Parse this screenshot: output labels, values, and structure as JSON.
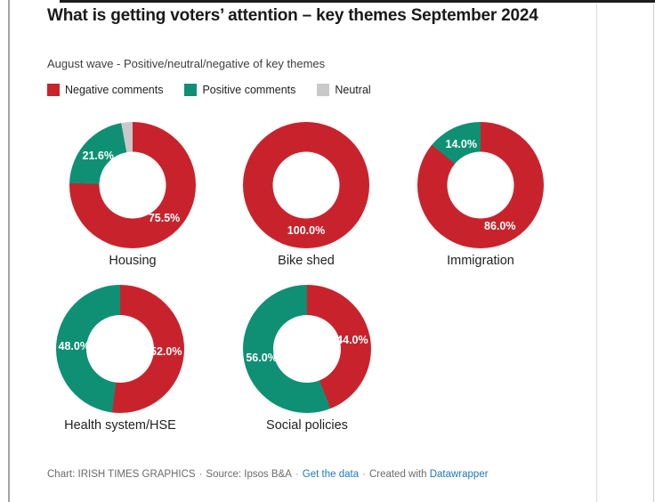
{
  "page": {
    "title": "What is getting voters’ attention – key themes September 2024",
    "subtitle": "August wave - Positive/neutral/negative of key themes"
  },
  "colors": {
    "negative": "#c8232c",
    "positive": "#0f9074",
    "neutral": "#c9c9c9",
    "link_blue": "#1f78c1",
    "title_text": "#1a1a1a",
    "body_text": "#222222",
    "footer_text": "#6b6b6b"
  },
  "legend": [
    {
      "label": "Negative comments",
      "color": "#c8232c"
    },
    {
      "label": "Positive comments",
      "color": "#0f9074"
    },
    {
      "label": "Neutral",
      "color": "#c9c9c9"
    }
  ],
  "chart_data": {
    "type": "pie",
    "subtype": "donut",
    "start_angle_deg": 0,
    "direction": "clockwise",
    "series_order": [
      "Negative comments",
      "Positive comments",
      "Neutral"
    ],
    "charts": [
      {
        "label": "Housing",
        "slices": [
          {
            "name": "Negative comments",
            "value": 75.5,
            "display": "75.5%"
          },
          {
            "name": "Positive comments",
            "value": 21.6,
            "display": "21.6%"
          },
          {
            "name": "Neutral",
            "value": 2.9,
            "display": ""
          }
        ]
      },
      {
        "label": "Bike shed",
        "slices": [
          {
            "name": "Negative comments",
            "value": 100.0,
            "display": "100.0%"
          }
        ]
      },
      {
        "label": "Immigration",
        "slices": [
          {
            "name": "Negative comments",
            "value": 86.0,
            "display": "86.0%"
          },
          {
            "name": "Positive comments",
            "value": 14.0,
            "display": "14.0%"
          }
        ]
      },
      {
        "label": "Health system/HSE",
        "slices": [
          {
            "name": "Negative comments",
            "value": 52.0,
            "display": "52.0%"
          },
          {
            "name": "Positive comments",
            "value": 48.0,
            "display": "48.0%"
          }
        ]
      },
      {
        "label": "Social policies",
        "slices": [
          {
            "name": "Negative comments",
            "value": 44.0,
            "display": "44.0%"
          },
          {
            "name": "Positive comments",
            "value": 56.0,
            "display": "56.0%"
          }
        ]
      }
    ]
  },
  "footer": {
    "chart_credit": "Chart: IRISH TIMES GRAPHICS",
    "source": "Source: Ipsos B&A",
    "get_data_label": "Get the data",
    "created_with": "Created with",
    "tool": "Datawrapper",
    "separator": "·"
  }
}
